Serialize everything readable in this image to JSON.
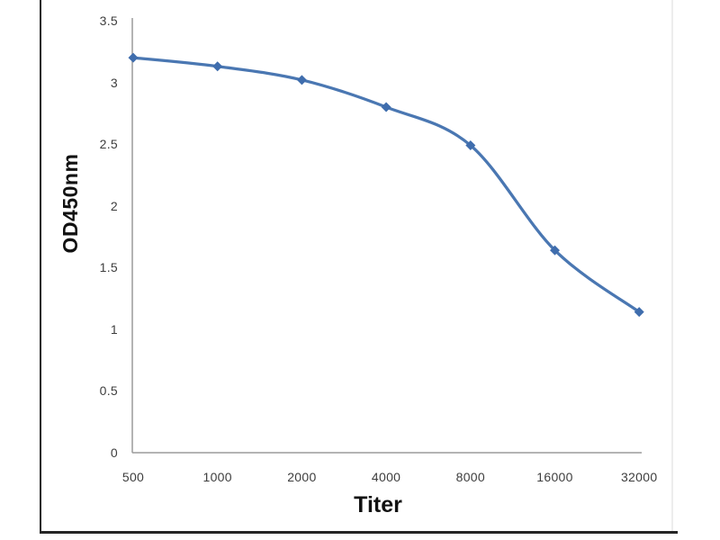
{
  "chart_data": {
    "type": "line",
    "title": "",
    "xlabel": "Titer",
    "ylabel": "OD450nm",
    "categories": [
      "500",
      "1000",
      "2000",
      "4000",
      "8000",
      "16000",
      "32000"
    ],
    "series": [
      {
        "name": "OD450nm",
        "values": [
          3.2,
          3.13,
          3.02,
          2.8,
          2.49,
          1.64,
          1.14
        ]
      }
    ],
    "ylim": [
      0,
      3.5
    ],
    "y_ticks": [
      "0",
      "0.5",
      "1",
      "1.5",
      "2",
      "2.5",
      "3",
      "3.5"
    ],
    "grid": "off",
    "legend": "none",
    "line_smooth": true,
    "marker": "diamond",
    "colors": {
      "line": "#4a77b2",
      "marker": "#3f6dad",
      "axis": "#9b9b9b",
      "tick_text": "#3d3d3d",
      "title_text": "#111111"
    }
  }
}
